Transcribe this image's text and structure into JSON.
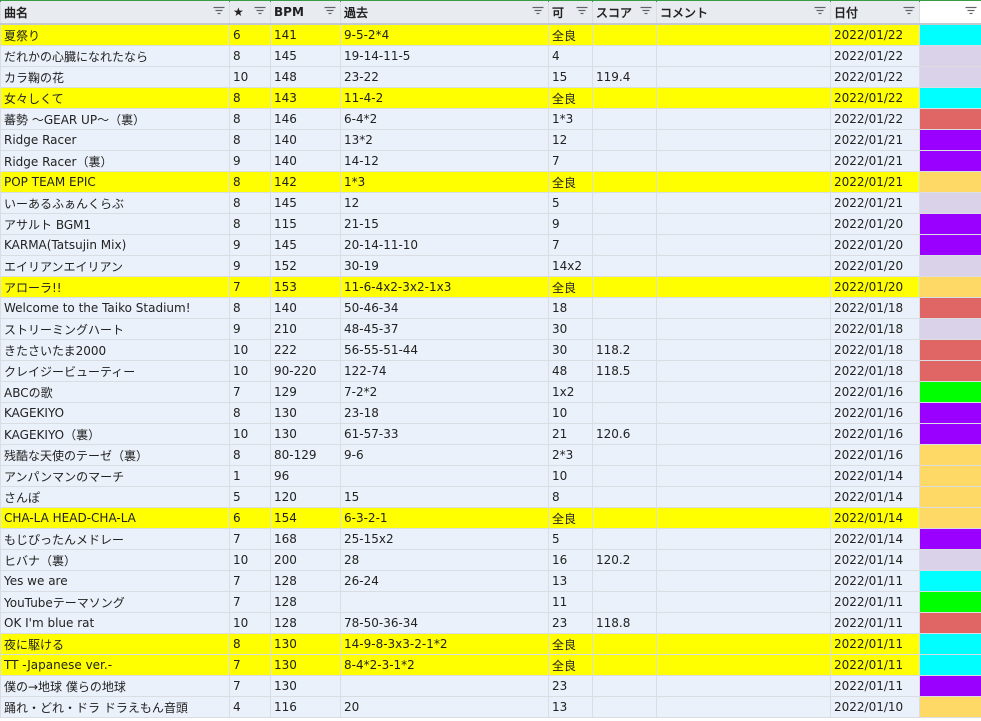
{
  "columns": [
    {
      "label": "曲名",
      "icon": "filter-icon"
    },
    {
      "label": "★",
      "icon": "filter-icon"
    },
    {
      "label": "BPM",
      "icon": "filter-icon"
    },
    {
      "label": "過去",
      "icon": "filter-icon"
    },
    {
      "label": "可",
      "icon": "filter-icon"
    },
    {
      "label": "スコア",
      "icon": "filter-icon"
    },
    {
      "label": "コメント",
      "icon": "filter-icon"
    },
    {
      "label": "日付",
      "icon": "filter-icon"
    },
    {
      "label": "",
      "icon": "filter-icon"
    }
  ],
  "colors": {
    "highlight": "#ffff00",
    "row_bg": "#ebf1fa",
    "cyan": "#00ffff",
    "lavender": "#d9d2e9",
    "red": "#e06666",
    "purple": "#9900ff",
    "orange": "#ffd966",
    "green": "#00ff00"
  },
  "rows": [
    {
      "name": "夏祭り",
      "star": "6",
      "bpm": "141",
      "past": "9-5-2*4",
      "ka": "全良",
      "score": "",
      "comment": "",
      "date": "2022/01/22",
      "color": "cyan",
      "hl": true
    },
    {
      "name": "だれかの心臓になれたなら",
      "star": "8",
      "bpm": "145",
      "past": "19-14-11-5",
      "ka": "4",
      "score": "",
      "comment": "",
      "date": "2022/01/22",
      "color": "lavender",
      "hl": false
    },
    {
      "name": "カラ鞠の花",
      "star": "10",
      "bpm": "148",
      "past": "23-22",
      "ka": "15",
      "score": "119.4",
      "comment": "",
      "date": "2022/01/22",
      "color": "lavender",
      "hl": false
    },
    {
      "name": "女々しくて",
      "star": "8",
      "bpm": "143",
      "past": "11-4-2",
      "ka": "全良",
      "score": "",
      "comment": "",
      "date": "2022/01/22",
      "color": "cyan",
      "hl": true
    },
    {
      "name": "蕃勢 ～GEAR UP～（裏）",
      "star": "8",
      "bpm": "146",
      "past": "6-4*2",
      "ka": "1*3",
      "score": "",
      "comment": "",
      "date": "2022/01/22",
      "color": "red",
      "hl": false
    },
    {
      "name": "Ridge Racer",
      "star": "8",
      "bpm": "140",
      "past": "13*2",
      "ka": "12",
      "score": "",
      "comment": "",
      "date": "2022/01/21",
      "color": "purple",
      "hl": false
    },
    {
      "name": "Ridge Racer（裏）",
      "star": "9",
      "bpm": "140",
      "past": "14-12",
      "ka": "7",
      "score": "",
      "comment": "",
      "date": "2022/01/21",
      "color": "purple",
      "hl": false
    },
    {
      "name": "POP TEAM EPIC",
      "star": "8",
      "bpm": "142",
      "past": "1*3",
      "ka": "全良",
      "score": "",
      "comment": "",
      "date": "2022/01/21",
      "color": "orange",
      "hl": true
    },
    {
      "name": "いーあるふぁんくらぶ",
      "star": "8",
      "bpm": "145",
      "past": "12",
      "ka": "5",
      "score": "",
      "comment": "",
      "date": "2022/01/21",
      "color": "lavender",
      "hl": false
    },
    {
      "name": "アサルト BGM1",
      "star": "8",
      "bpm": "115",
      "past": "21-15",
      "ka": "9",
      "score": "",
      "comment": "",
      "date": "2022/01/20",
      "color": "purple",
      "hl": false
    },
    {
      "name": "KARMA(Tatsujin Mix)",
      "star": "9",
      "bpm": "145",
      "past": "20-14-11-10",
      "ka": "7",
      "score": "",
      "comment": "",
      "date": "2022/01/20",
      "color": "purple",
      "hl": false
    },
    {
      "name": "エイリアンエイリアン",
      "star": "9",
      "bpm": "152",
      "past": "30-19",
      "ka": "14x2",
      "score": "",
      "comment": "",
      "date": "2022/01/20",
      "color": "lavender",
      "hl": false
    },
    {
      "name": "アローラ!!",
      "star": "7",
      "bpm": "153",
      "past": "11-6-4x2-3x2-1x3",
      "ka": "全良",
      "score": "",
      "comment": "",
      "date": "2022/01/20",
      "color": "orange",
      "hl": true
    },
    {
      "name": "Welcome to the Taiko Stadium!",
      "star": "8",
      "bpm": "140",
      "past": "50-46-34",
      "ka": "18",
      "score": "",
      "comment": "",
      "date": "2022/01/18",
      "color": "red",
      "hl": false
    },
    {
      "name": "ストリーミングハート",
      "star": "9",
      "bpm": "210",
      "past": "48-45-37",
      "ka": "30",
      "score": "",
      "comment": "",
      "date": "2022/01/18",
      "color": "lavender",
      "hl": false
    },
    {
      "name": "きたさいたま2000",
      "star": "10",
      "bpm": "222",
      "past": "56-55-51-44",
      "ka": "30",
      "score": "118.2",
      "comment": "",
      "date": "2022/01/18",
      "color": "red",
      "hl": false
    },
    {
      "name": "クレイジービューティー",
      "star": "10",
      "bpm": "90-220",
      "past": "122-74",
      "ka": "48",
      "score": "118.5",
      "comment": "",
      "date": "2022/01/18",
      "color": "red",
      "hl": false
    },
    {
      "name": "ABCの歌",
      "star": "7",
      "bpm": "129",
      "past": "7-2*2",
      "ka": "1x2",
      "score": "",
      "comment": "",
      "date": "2022/01/16",
      "color": "green",
      "hl": false
    },
    {
      "name": "KAGEKIYO",
      "star": "8",
      "bpm": "130",
      "past": "23-18",
      "ka": "10",
      "score": "",
      "comment": "",
      "date": "2022/01/16",
      "color": "purple",
      "hl": false
    },
    {
      "name": "KAGEKIYO（裏）",
      "star": "10",
      "bpm": "130",
      "past": "61-57-33",
      "ka": "21",
      "score": "120.6",
      "comment": "",
      "date": "2022/01/16",
      "color": "purple",
      "hl": false
    },
    {
      "name": "残酷な天使のテーゼ（裏）",
      "star": "8",
      "bpm": "80-129",
      "past": "9-6",
      "ka": "2*3",
      "score": "",
      "comment": "",
      "date": "2022/01/16",
      "color": "orange",
      "hl": false
    },
    {
      "name": "アンパンマンのマーチ",
      "star": "1",
      "bpm": "96",
      "past": "",
      "ka": "10",
      "score": "",
      "comment": "",
      "date": "2022/01/14",
      "color": "orange",
      "hl": false
    },
    {
      "name": "さんぽ",
      "star": "5",
      "bpm": "120",
      "past": "15",
      "ka": "8",
      "score": "",
      "comment": "",
      "date": "2022/01/14",
      "color": "orange",
      "hl": false
    },
    {
      "name": "CHA-LA HEAD-CHA-LA",
      "star": "6",
      "bpm": "154",
      "past": "6-3-2-1",
      "ka": "全良",
      "score": "",
      "comment": "",
      "date": "2022/01/14",
      "color": "orange",
      "hl": true
    },
    {
      "name": "もじぴったんメドレー",
      "star": "7",
      "bpm": "168",
      "past": "25-15x2",
      "ka": "5",
      "score": "",
      "comment": "",
      "date": "2022/01/14",
      "color": "purple",
      "hl": false
    },
    {
      "name": "ヒバナ（裏）",
      "star": "10",
      "bpm": "200",
      "past": "28",
      "ka": "16",
      "score": "120.2",
      "comment": "",
      "date": "2022/01/14",
      "color": "lavender",
      "hl": false
    },
    {
      "name": "Yes we are",
      "star": "7",
      "bpm": "128",
      "past": "26-24",
      "ka": "13",
      "score": "",
      "comment": "",
      "date": "2022/01/11",
      "color": "cyan",
      "hl": false
    },
    {
      "name": "YouTubeテーマソング",
      "star": "7",
      "bpm": "128",
      "past": "",
      "ka": "11",
      "score": "",
      "comment": "",
      "date": "2022/01/11",
      "color": "green",
      "hl": false
    },
    {
      "name": "OK I'm blue rat",
      "star": "10",
      "bpm": "128",
      "past": "78-50-36-34",
      "ka": "23",
      "score": "118.8",
      "comment": "",
      "date": "2022/01/11",
      "color": "red",
      "hl": false
    },
    {
      "name": "夜に駆ける",
      "star": "8",
      "bpm": "130",
      "past": "14-9-8-3x3-2-1*2",
      "ka": "全良",
      "score": "",
      "comment": "",
      "date": "2022/01/11",
      "color": "cyan",
      "hl": true
    },
    {
      "name": "TT -Japanese ver.-",
      "star": "7",
      "bpm": "130",
      "past": "8-4*2-3-1*2",
      "ka": "全良",
      "score": "",
      "comment": "",
      "date": "2022/01/11",
      "color": "cyan",
      "hl": true
    },
    {
      "name": "僕の→地球 僕らの地球",
      "star": "7",
      "bpm": "130",
      "past": "",
      "ka": "23",
      "score": "",
      "comment": "",
      "date": "2022/01/11",
      "color": "purple",
      "hl": false
    },
    {
      "name": "踊れ・どれ・ドラ ドラえもん音頭",
      "star": "4",
      "bpm": "116",
      "past": "20",
      "ka": "13",
      "score": "",
      "comment": "",
      "date": "2022/01/10",
      "color": "orange",
      "hl": false
    }
  ]
}
